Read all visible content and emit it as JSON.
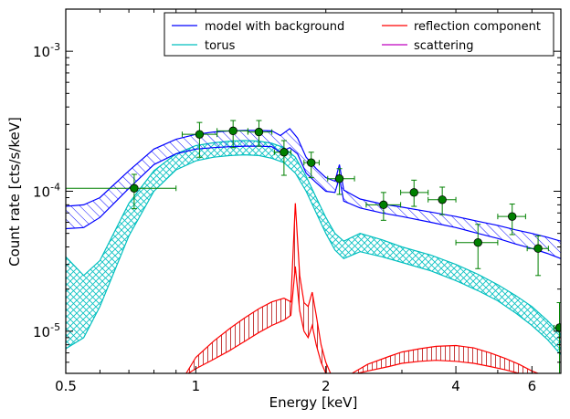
{
  "chart_data": {
    "type": "line",
    "title": "",
    "xlabel": "Energy [keV]",
    "ylabel": "Count rate [cts/s/keV]",
    "xscale": "log",
    "yscale": "log",
    "xlim": [
      0.5,
      7.0
    ],
    "ylim": [
      5e-06,
      0.002
    ],
    "x_ticks": [
      {
        "value": 0.5,
        "label": "0.5"
      },
      {
        "value": 1,
        "label": "1"
      },
      {
        "value": 2,
        "label": "2"
      },
      {
        "value": 4,
        "label": "4"
      },
      {
        "value": 6,
        "label": "6"
      }
    ],
    "y_ticks": [
      {
        "value": 1e-05,
        "base": "10",
        "exp": "-5"
      },
      {
        "value": 0.0001,
        "base": "10",
        "exp": "-4"
      },
      {
        "value": 0.001,
        "base": "10",
        "exp": "-3"
      }
    ],
    "legend": {
      "location": "top-right",
      "columns": 2,
      "entries": [
        {
          "label": "model with background",
          "color": "#0000ff"
        },
        {
          "label": "reflection component",
          "color": "#ff0000"
        },
        {
          "label": "torus",
          "color": "#00bfbf"
        },
        {
          "label": "scattering",
          "color": "#bf00bf"
        }
      ]
    },
    "series": [
      {
        "name": "model with background",
        "color": "#0000ff",
        "x": [
          0.5,
          0.55,
          0.6,
          0.7,
          0.8,
          0.9,
          1.0,
          1.1,
          1.2,
          1.3,
          1.4,
          1.5,
          1.57,
          1.65,
          1.72,
          1.8,
          1.9,
          2.0,
          2.1,
          2.15,
          2.2,
          2.4,
          2.7,
          3.0,
          3.5,
          4.0,
          4.5,
          5.0,
          5.5,
          6.0,
          6.5,
          7.0
        ],
        "lower": [
          5.4e-05,
          5.5e-05,
          6.5e-05,
          0.000105,
          0.000155,
          0.000185,
          0.0002,
          0.000205,
          0.000208,
          0.00021,
          0.00021,
          0.000208,
          0.00019,
          0.000205,
          0.000185,
          0.000135,
          0.000115,
          0.0001,
          9.8e-05,
          0.000125,
          8.5e-05,
          7.6e-05,
          7e-05,
          6.6e-05,
          6e-05,
          5.5e-05,
          5e-05,
          4.6e-05,
          4.2e-05,
          3.9e-05,
          3.6e-05,
          3.3e-05
        ],
        "upper": [
          7.8e-05,
          8e-05,
          9e-05,
          0.00014,
          0.0002,
          0.000235,
          0.000255,
          0.000265,
          0.00027,
          0.000272,
          0.000272,
          0.00027,
          0.00025,
          0.00028,
          0.00024,
          0.000175,
          0.000145,
          0.000125,
          0.000118,
          0.000155,
          0.000102,
          8.8e-05,
          8.1e-05,
          7.7e-05,
          7.1e-05,
          6.6e-05,
          6.1e-05,
          5.7e-05,
          5.3e-05,
          5e-05,
          4.7e-05,
          4.4e-05
        ]
      },
      {
        "name": "torus",
        "color": "#00bfbf",
        "x": [
          0.5,
          0.55,
          0.6,
          0.7,
          0.8,
          0.9,
          1.0,
          1.1,
          1.2,
          1.3,
          1.4,
          1.5,
          1.6,
          1.7,
          1.8,
          1.9,
          2.0,
          2.1,
          2.2,
          2.4,
          2.7,
          3.0,
          3.5,
          4.0,
          4.5,
          5.0,
          5.5,
          6.0,
          6.5,
          7.0
        ],
        "lower": [
          7.5e-06,
          9e-06,
          1.5e-05,
          4.8e-05,
          0.0001,
          0.000142,
          0.000165,
          0.000175,
          0.00018,
          0.000182,
          0.00018,
          0.000172,
          0.00016,
          0.000135,
          0.0001,
          7e-05,
          5e-05,
          3.8e-05,
          3.3e-05,
          3.7e-05,
          3.4e-05,
          3.1e-05,
          2.7e-05,
          2.3e-05,
          1.95e-05,
          1.65e-05,
          1.35e-05,
          1.1e-05,
          8.8e-06,
          6.8e-06
        ],
        "upper": [
          3.4e-05,
          2.5e-05,
          3.2e-05,
          8.2e-05,
          0.00014,
          0.000185,
          0.000212,
          0.000222,
          0.000228,
          0.00023,
          0.000228,
          0.00022,
          0.000205,
          0.000175,
          0.000128,
          9e-05,
          6.5e-05,
          5e-05,
          4.4e-05,
          5e-05,
          4.5e-05,
          4e-05,
          3.5e-05,
          3e-05,
          2.55e-05,
          2.15e-05,
          1.8e-05,
          1.5e-05,
          1.2e-05,
          9.5e-06
        ]
      },
      {
        "name": "reflection component",
        "color": "#ff0000",
        "x": [
          0.95,
          1.0,
          1.1,
          1.2,
          1.3,
          1.4,
          1.5,
          1.6,
          1.66,
          1.7,
          1.74,
          1.78,
          1.82,
          1.86,
          1.9,
          1.95,
          2.0,
          2.05
        ],
        "lower": [
          4.9e-06,
          5.4e-06,
          6.3e-06,
          7.3e-06,
          8.5e-06,
          9.8e-06,
          1.1e-05,
          1.2e-05,
          1.3e-05,
          2.9e-05,
          1.4e-05,
          1e-05,
          9e-06,
          1.1e-05,
          8e-06,
          6e-06,
          5e-06,
          4.9e-06
        ],
        "upper": [
          5e-06,
          6.5e-06,
          8.5e-06,
          1.05e-05,
          1.25e-05,
          1.45e-05,
          1.62e-05,
          1.72e-05,
          1.62e-05,
          8.2e-05,
          2.5e-05,
          1.6e-05,
          1.5e-05,
          1.9e-05,
          1.3e-05,
          8e-06,
          6e-06,
          5e-06
        ]
      },
      {
        "name": "reflection component (high energy)",
        "color": "#ff0000",
        "x": [
          2.3,
          2.5,
          2.8,
          3.0,
          3.3,
          3.6,
          4.0,
          4.4,
          4.8,
          5.2,
          5.6,
          6.0,
          6.3
        ],
        "lower": [
          4.9e-06,
          5.2e-06,
          5.6e-06,
          5.9e-06,
          6.1e-06,
          6.2e-06,
          6.1e-06,
          5.9e-06,
          5.6e-06,
          5.3e-06,
          5e-06,
          4.9e-06,
          4.9e-06
        ],
        "upper": [
          5e-06,
          5.8e-06,
          6.6e-06,
          7.1e-06,
          7.5e-06,
          7.8e-06,
          7.9e-06,
          7.6e-06,
          7e-06,
          6.4e-06,
          5.8e-06,
          5.2e-06,
          4.9e-06
        ]
      }
    ],
    "data_points": {
      "color": "#008000",
      "points": [
        {
          "x": 0.72,
          "y": 0.000105,
          "xerr_lo": 0.5,
          "xerr_hi": 0.9,
          "yerr_lo": 7.5e-05,
          "yerr_hi": 0.000132
        },
        {
          "x": 1.02,
          "y": 0.000255,
          "xerr_lo": 0.93,
          "xerr_hi": 1.12,
          "yerr_lo": 0.000175,
          "yerr_hi": 0.00031
        },
        {
          "x": 1.22,
          "y": 0.00027,
          "xerr_lo": 1.12,
          "xerr_hi": 1.32,
          "yerr_lo": 0.000205,
          "yerr_hi": 0.00032
        },
        {
          "x": 1.4,
          "y": 0.000265,
          "xerr_lo": 1.32,
          "xerr_hi": 1.5,
          "yerr_lo": 0.00021,
          "yerr_hi": 0.00032
        },
        {
          "x": 1.6,
          "y": 0.00019,
          "xerr_lo": 1.52,
          "xerr_hi": 1.66,
          "yerr_lo": 0.00013,
          "yerr_hi": 0.00023
        },
        {
          "x": 1.85,
          "y": 0.00016,
          "xerr_lo": 1.78,
          "xerr_hi": 1.93,
          "yerr_lo": 0.000125,
          "yerr_hi": 0.00019
        },
        {
          "x": 2.15,
          "y": 0.000123,
          "xerr_lo": 2.02,
          "xerr_hi": 2.33,
          "yerr_lo": 9.5e-05,
          "yerr_hi": 0.000145
        },
        {
          "x": 2.72,
          "y": 8e-05,
          "xerr_lo": 2.48,
          "xerr_hi": 2.98,
          "yerr_lo": 6.2e-05,
          "yerr_hi": 9.8e-05
        },
        {
          "x": 3.2,
          "y": 9.8e-05,
          "xerr_lo": 2.98,
          "xerr_hi": 3.45,
          "yerr_lo": 7.8e-05,
          "yerr_hi": 0.00012
        },
        {
          "x": 3.72,
          "y": 8.7e-05,
          "xerr_lo": 3.45,
          "xerr_hi": 4.0,
          "yerr_lo": 6.8e-05,
          "yerr_hi": 0.000107
        },
        {
          "x": 4.5,
          "y": 4.3e-05,
          "xerr_lo": 4.0,
          "xerr_hi": 5.0,
          "yerr_lo": 2.8e-05,
          "yerr_hi": 5.8e-05
        },
        {
          "x": 5.4,
          "y": 6.6e-05,
          "xerr_lo": 5.0,
          "xerr_hi": 5.8,
          "yerr_lo": 4.9e-05,
          "yerr_hi": 8.1e-05
        },
        {
          "x": 6.2,
          "y": 3.9e-05,
          "xerr_lo": 5.85,
          "xerr_hi": 6.55,
          "yerr_lo": 2.5e-05,
          "yerr_hi": 4.8e-05
        },
        {
          "x": 6.95,
          "y": 1.06e-05,
          "xerr_lo": 6.75,
          "xerr_hi": 7.0,
          "yerr_lo": 5e-06,
          "yerr_hi": 1.6e-05
        }
      ]
    }
  }
}
